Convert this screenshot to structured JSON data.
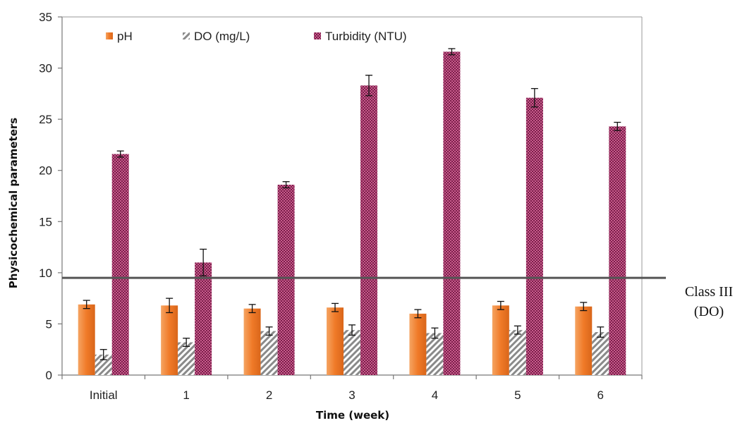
{
  "chart_data": {
    "type": "bar",
    "title": "",
    "xlabel": "Time (week)",
    "ylabel": "Physicochemical parameters",
    "categories": [
      "Initial",
      "1",
      "2",
      "3",
      "4",
      "5",
      "6"
    ],
    "ylim": [
      0,
      35
    ],
    "yticks": [
      0,
      5,
      10,
      15,
      20,
      25,
      30,
      35
    ],
    "grid": false,
    "legend_position": "top-left",
    "series": [
      {
        "name": "pH",
        "color": "#f07a28",
        "pattern": "solid-gradient",
        "values": [
          6.9,
          6.8,
          6.5,
          6.6,
          6.0,
          6.8,
          6.7
        ],
        "errors": [
          0.4,
          0.7,
          0.4,
          0.4,
          0.4,
          0.4,
          0.4
        ]
      },
      {
        "name": "DO (mg/L)",
        "color": "#9a9a9a",
        "pattern": "diagonal-hatch",
        "values": [
          2.0,
          3.2,
          4.3,
          4.4,
          4.1,
          4.4,
          4.2
        ],
        "errors": [
          0.5,
          0.4,
          0.4,
          0.5,
          0.5,
          0.4,
          0.5
        ]
      },
      {
        "name": "Turbidity (NTU)",
        "color": "#a8326a",
        "pattern": "checker",
        "values": [
          21.6,
          11.0,
          18.6,
          28.3,
          31.6,
          27.1,
          24.3
        ],
        "errors": [
          0.3,
          1.3,
          0.3,
          1.0,
          0.3,
          0.9,
          0.4
        ]
      }
    ],
    "reference_line": {
      "value": 9.5,
      "label_line1": "Class III",
      "label_line2": "(DO)",
      "color": "#555555"
    }
  }
}
